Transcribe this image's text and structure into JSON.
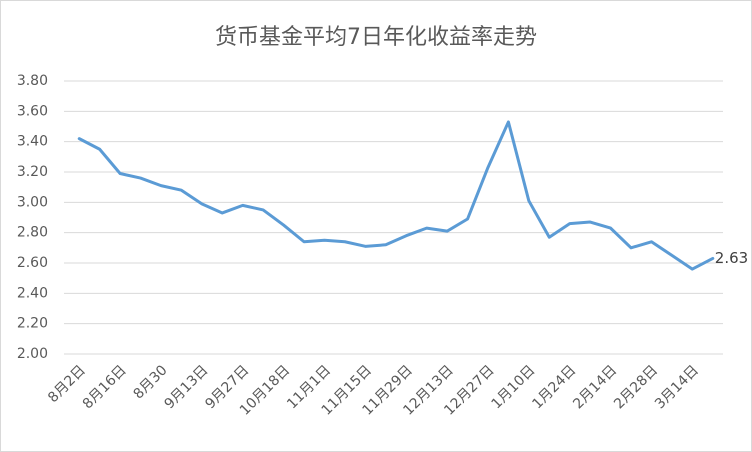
{
  "chart_data": {
    "type": "line",
    "title": "货币基金平均7日年化收益率走势",
    "categories": [
      "8月2日",
      null,
      "8月16日",
      null,
      "8月30",
      null,
      "9月13日",
      null,
      "9月27日",
      null,
      "10月18日",
      null,
      "11月1日",
      null,
      "11月15日",
      null,
      "11月29日",
      null,
      "12月13日",
      null,
      "12月27日",
      null,
      "1月10日",
      null,
      "1月24日",
      null,
      "2月14日",
      null,
      "2月28日",
      null,
      "3月14日",
      null
    ],
    "series": [
      {
        "color": "#5b9bd5",
        "values": [
          3.42,
          3.35,
          3.19,
          3.16,
          3.11,
          3.08,
          2.99,
          2.93,
          2.98,
          2.95,
          2.85,
          2.74,
          2.75,
          2.74,
          2.71,
          2.72,
          2.78,
          2.83,
          2.81,
          2.89,
          3.23,
          3.53,
          3.01,
          2.77,
          2.86,
          2.87,
          2.83,
          2.7,
          2.74,
          2.65,
          2.56,
          2.63
        ],
        "value_labels": [
          null,
          null,
          null,
          null,
          null,
          null,
          null,
          null,
          null,
          null,
          null,
          null,
          null,
          null,
          null,
          null,
          null,
          null,
          null,
          null,
          null,
          null,
          null,
          null,
          null,
          null,
          null,
          null,
          null,
          null,
          null,
          "2.63"
        ]
      }
    ],
    "ylim": [
      2.0,
      3.8
    ],
    "yticks": [
      {
        "value": 2.0,
        "label": "2.00"
      },
      {
        "value": 2.2,
        "label": "2.20"
      },
      {
        "value": 2.4,
        "label": "2.40"
      },
      {
        "value": 2.6,
        "label": "2.60"
      },
      {
        "value": 2.8,
        "label": "2.80"
      },
      {
        "value": 3.0,
        "label": "3.00"
      },
      {
        "value": 3.2,
        "label": "3.20"
      },
      {
        "value": 3.4,
        "label": "3.40"
      },
      {
        "value": 3.6,
        "label": "3.60"
      },
      {
        "value": 3.8,
        "label": "3.80"
      }
    ],
    "grid": true
  }
}
